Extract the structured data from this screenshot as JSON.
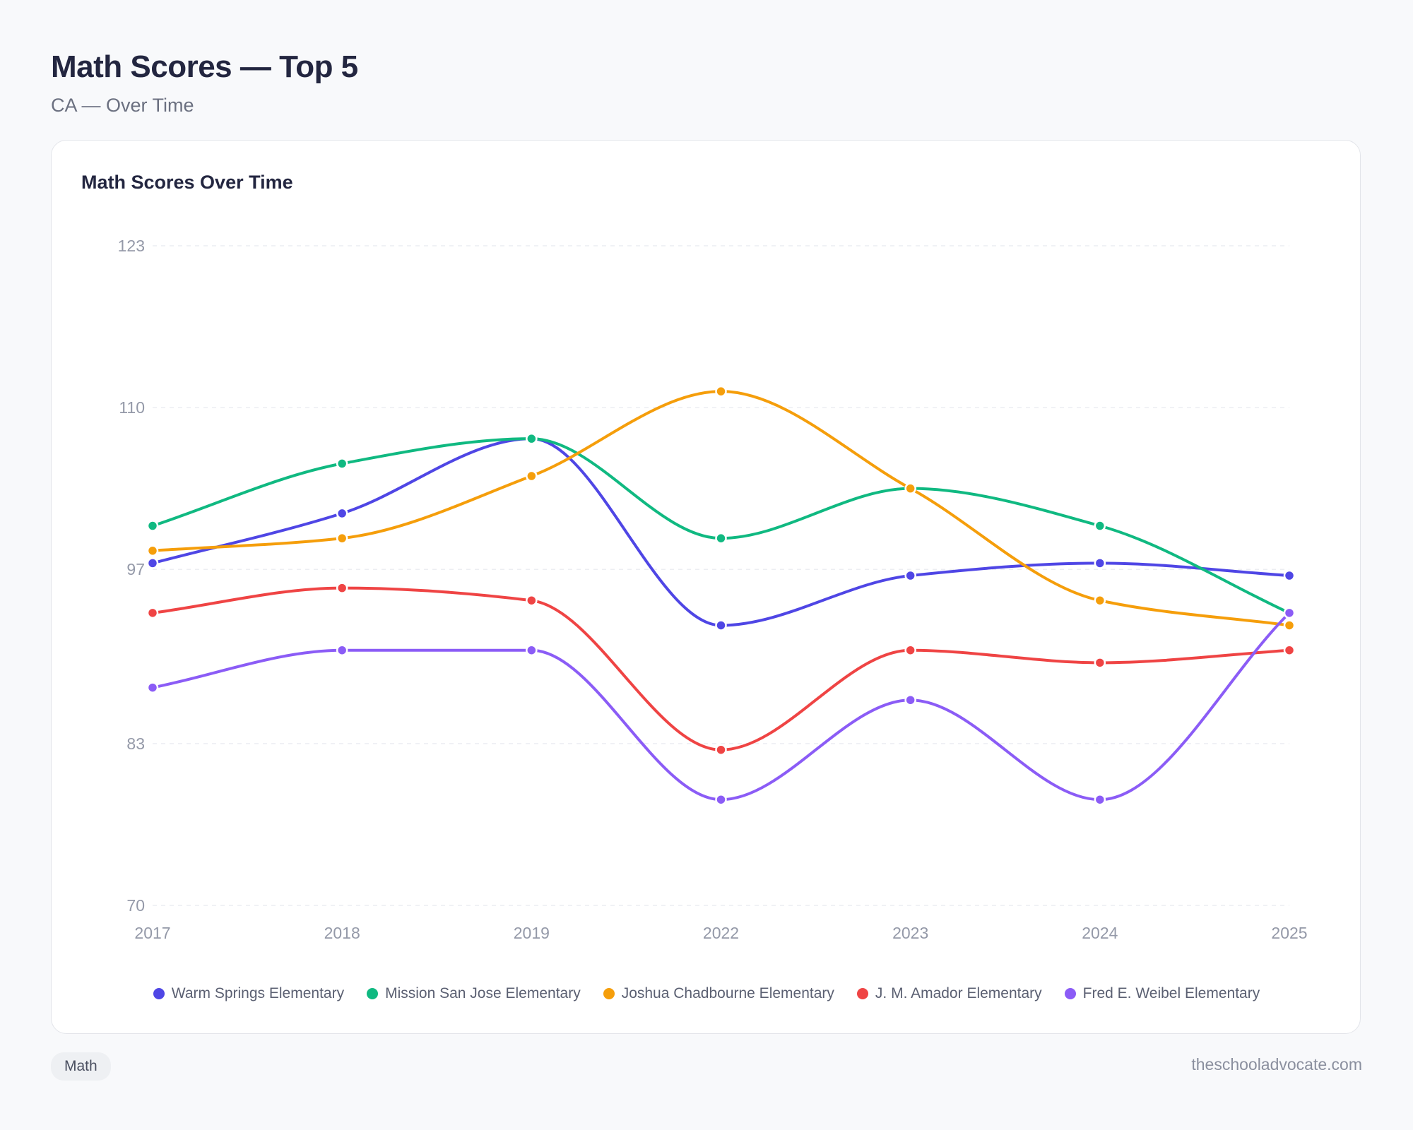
{
  "header": {
    "title": "Math Scores — Top 5",
    "subtitle": "CA — Over Time"
  },
  "card": {
    "title": "Math Scores Over Time"
  },
  "footer": {
    "tag": "Math",
    "source": "theschooladvocate.com"
  },
  "chart_data": {
    "type": "line",
    "title": "Math Scores Over Time",
    "xlabel": "",
    "ylabel": "",
    "x": [
      "2017",
      "2018",
      "2019",
      "2022",
      "2023",
      "2024",
      "2025"
    ],
    "ylim": [
      70,
      123
    ],
    "yticks": [
      70,
      83,
      97,
      110,
      123
    ],
    "grid": true,
    "legend_position": "bottom",
    "series": [
      {
        "name": "Warm Springs Elementary",
        "color": "#4f46e5",
        "values": [
          97.5,
          101.5,
          107.5,
          92.5,
          96.5,
          97.5,
          96.5
        ]
      },
      {
        "name": "Mission San Jose Elementary",
        "color": "#10b981",
        "values": [
          100.5,
          105.5,
          107.5,
          99.5,
          103.5,
          100.5,
          93.5
        ]
      },
      {
        "name": "Joshua Chadbourne Elementary",
        "color": "#f59e0b",
        "values": [
          98.5,
          99.5,
          104.5,
          111.3,
          103.5,
          94.5,
          92.5
        ]
      },
      {
        "name": "J. M. Amador Elementary",
        "color": "#ef4444",
        "values": [
          93.5,
          95.5,
          94.5,
          82.5,
          90.5,
          89.5,
          90.5
        ]
      },
      {
        "name": "Fred E. Weibel Elementary",
        "color": "#8b5cf6",
        "values": [
          87.5,
          90.5,
          90.5,
          78.5,
          86.5,
          78.5,
          93.5
        ]
      }
    ]
  }
}
